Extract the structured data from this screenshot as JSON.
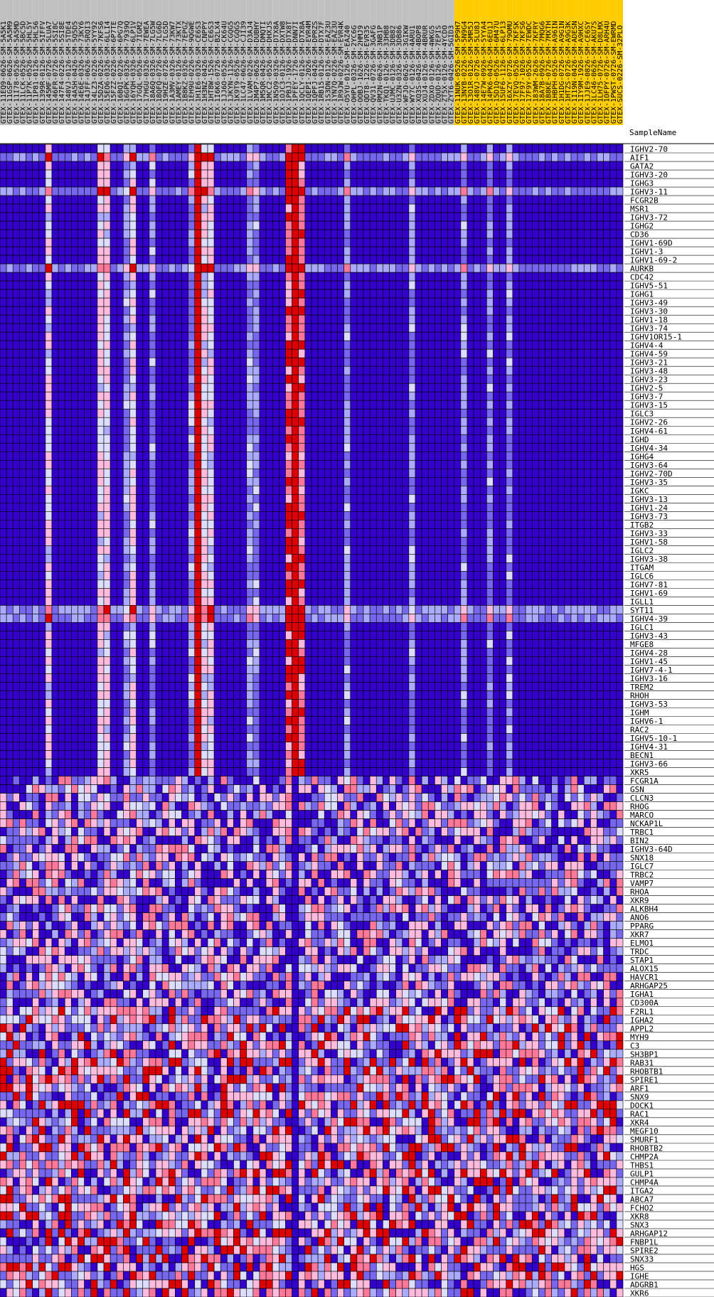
{
  "chart_data": {
    "type": "heatmap",
    "title": "",
    "xlabel": "",
    "ylabel": "",
    "header_label": "SampleName",
    "columns": [
      {
        "name": "GTEX-11EQ9-0626-SM-5A5K1",
        "group": "gray"
      },
      {
        "name": "GTEX-11GSP-0626-SM-5A5M9",
        "group": "gray"
      },
      {
        "name": "GTEX-11I78-0526-SM-5A5MD",
        "group": "gray"
      },
      {
        "name": "GTEX-11LCK-0526-SM-5BC5D",
        "group": "gray"
      },
      {
        "name": "GTEX-11P7K-0526-SM-5HL5Y",
        "group": "gray"
      },
      {
        "name": "GTEX-11P81-0126-SM-5HL56",
        "group": "gray"
      },
      {
        "name": "GTEX-1399R-0126-SM-5IFFV",
        "group": "gray"
      },
      {
        "name": "GTEX-145MF-0726-SM-5LUA7",
        "group": "gray"
      },
      {
        "name": "GTEX-146FR-0726-SM-5SI8C",
        "group": "gray"
      },
      {
        "name": "GTEX-147F4-0226-SM-5SI8E",
        "group": "gray"
      },
      {
        "name": "GTEX-148VJ-0126-SM-5TDE4",
        "group": "gray"
      },
      {
        "name": "GTEX-14A5H-0426-SM-5Q5D5",
        "group": "gray"
      },
      {
        "name": "GTEX-14E6E-0326-SM-73KY6",
        "group": "gray"
      },
      {
        "name": "GTEX-14JFF-0626-SM-5RQI3",
        "group": "gray"
      },
      {
        "name": "GTEX-14LZ3-0226-SM-5YY92",
        "group": "gray"
      },
      {
        "name": "GTEX-15DZA-0226-SM-7KFS6",
        "group": "gray"
      },
      {
        "name": "GTEX-15EO6-0326-SM-6LLI4",
        "group": "gray"
      },
      {
        "name": "GTEX-15FZZ-0226-SM-6P7TE",
        "group": "gray"
      },
      {
        "name": "GTEX-16BQI-0226-SM-6PG7Q",
        "group": "gray"
      },
      {
        "name": "GTEX-16GPK-0326-SM-7939Q",
        "group": "gray"
      },
      {
        "name": "GTEX-16YQH-0326-SM-6LP1V",
        "group": "gray"
      },
      {
        "name": "GTEX-17GQL-0526-SM-7IGM2",
        "group": "gray"
      },
      {
        "name": "GTEX-17HGU-0326-SM-7EWEA",
        "group": "gray"
      },
      {
        "name": "GTEX-18A6Q-0326-SM-7LG5W",
        "group": "gray"
      },
      {
        "name": "GTEX-18QFQ-0726-SM-7LG6D",
        "group": "gray"
      },
      {
        "name": "GTEX-19HZE-0726-SM-7LG5D",
        "group": "gray"
      },
      {
        "name": "GTEX-1A3MV-0326-SM-73KW7",
        "group": "gray"
      },
      {
        "name": "GTEX-1AMEY-0126-SM-73KTX",
        "group": "gray"
      },
      {
        "name": "GTEX-1B8KZ-0326-SM-7EPGZ",
        "group": "gray"
      },
      {
        "name": "GTEX-1EH9U-0226-SM-9QGWE",
        "group": "gray"
      },
      {
        "name": "GTEX-1H1E6-0326-SM-CE6S3",
        "group": "gray"
      },
      {
        "name": "GTEX-1H3NZ-0426-SM-CNPPY",
        "group": "gray"
      },
      {
        "name": "GTEX-1HT8W-1526-SM-CE6S3",
        "group": "gray"
      },
      {
        "name": "GTEX-1I6K6-0726-SM-B2LX4",
        "group": "gray"
      },
      {
        "name": "GTEX-1JJ6O-0526-SM-CK64U",
        "group": "gray"
      },
      {
        "name": "GTEX-1JKYN-1126-SM-CGQG5",
        "group": "gray"
      },
      {
        "name": "GTEX-1K9T9-0526-SM-CGQG5",
        "group": "gray"
      },
      {
        "name": "GTEX-1LC47-0626-SM-CJI39",
        "group": "gray"
      },
      {
        "name": "GTEX-1LVAM-0226-SM-D3AJ4",
        "group": "gray"
      },
      {
        "name": "GTEX-1M4P7-0626-SM-DUBHY",
        "group": "gray"
      },
      {
        "name": "GTEX-1M5QR-0426-SM-DMQTI",
        "group": "gray"
      },
      {
        "name": "GTEX-1MCC2-0526-SM-DHXJS",
        "group": "gray"
      },
      {
        "name": "GTEX-1N5O9-0326-SM-DTX8A",
        "group": "gray"
      },
      {
        "name": "GTEX-1OJC3-0126-SM-DXTW8",
        "group": "gray"
      },
      {
        "name": "GTEX-1PBJJ-1926-SM-DTX8T",
        "group": "gray"
      },
      {
        "name": "GTEX-1PFEY-1726-SM-DNN7I",
        "group": "gray"
      },
      {
        "name": "GTEX-1QCLY-0126-SM-DTX8A",
        "group": "gray"
      },
      {
        "name": "GTEX-1QEPI-2026-SM-EVR4M",
        "group": "gray"
      },
      {
        "name": "GTEX-1QPFJ-0426-SM-DPRZS",
        "group": "gray"
      },
      {
        "name": "GTEX-1RB15-0126-SM-DTX7F",
        "group": "gray"
      },
      {
        "name": "GTEX-1S3DN-0126-SM-EAZ3U",
        "group": "gray"
      },
      {
        "name": "GTEX-1YN7Q-0226-SM-EAZ3U",
        "group": "gray"
      },
      {
        "name": "GTEX-1R9JW-0226-SM-EVR4K",
        "group": "gray"
      },
      {
        "name": "GTEX-O5YU-0126-SM-EAZ40",
        "group": "gray"
      },
      {
        "name": "GTEX-OHPL-0326-SM-2YC6G",
        "group": "gray"
      },
      {
        "name": "GTEX-OOBJ-1626-SM-2HMJ9",
        "group": "gray"
      },
      {
        "name": "GTEX-QDT8-1226-SM-EVR35",
        "group": "gray"
      },
      {
        "name": "GTEX-QV31-0726-SM-3GAFG",
        "group": "gray"
      },
      {
        "name": "GTEX-RM2N-0626-SM-3NB1P",
        "group": "gray"
      },
      {
        "name": "GTEX-TKQ1-0126-SM-33HB8",
        "group": "gray"
      },
      {
        "name": "GTEX-UJMC-0126-SM-3DB82",
        "group": "gray"
      },
      {
        "name": "GTEX-U3ZN-0326-SM-3DB86",
        "group": "gray"
      },
      {
        "name": "GTEX-WFJO-0626-SM-3GIKW",
        "group": "gray"
      },
      {
        "name": "GTEX-WY7C-0126-SM-4ARU1",
        "group": "gray"
      },
      {
        "name": "GTEX-XQ3S-0426-SM-4BOP8",
        "group": "gray"
      },
      {
        "name": "GTEX-XUJ4-0126-SM-4BRUR",
        "group": "gray"
      },
      {
        "name": "GTEX-ZDXO-0126-SM-4WKG5",
        "group": "gray"
      },
      {
        "name": "GTEX-ZQUD-0126-SM-7EPIS",
        "group": "gray"
      },
      {
        "name": "GTEX-ZT5X-0126-SM-4YCDO",
        "group": "gray"
      },
      {
        "name": "GTEX-ZYT6-0426-SM-5GID3",
        "group": "gray"
      },
      {
        "name": "GTEX-11NUK-0526-SM-5P9H7",
        "group": "gold"
      },
      {
        "name": "GTEX-13NYB-0226-SM-5N9G4",
        "group": "gold"
      },
      {
        "name": "GTEX-13O1R-0126-SM-5MR5J",
        "group": "gold"
      },
      {
        "name": "GTEX-148VJ-0726-SM-5LU8J",
        "group": "gold"
      },
      {
        "name": "GTEX-14E7W-0926-SM-5YYA4",
        "group": "gold"
      },
      {
        "name": "GTEX-14PK6-0426-SM-6EU1J",
        "group": "gold"
      },
      {
        "name": "GTEX-15D1Q-0526-SM-6M47U",
        "group": "gold"
      },
      {
        "name": "GTEX-15UF6-1126-SM-6LP13",
        "group": "gold"
      },
      {
        "name": "GTEX-16XZY-0726-SM-79OMU",
        "group": "gold"
      },
      {
        "name": "GTEX-17EVQ-0526-SM-7KFSK",
        "group": "gold"
      },
      {
        "name": "GTEX-17F97-1026-SM-7KFS6",
        "group": "gold"
      },
      {
        "name": "GTEX-17F9Y-0526-SM-7EWDC",
        "group": "gold"
      },
      {
        "name": "GTEX-183WM-2626-SM-7KFRY",
        "group": "gold"
      },
      {
        "name": "GTEX-18A7B-0926-SM-7MQG6",
        "group": "gold"
      },
      {
        "name": "GTEX-1B8KE-0726-SM-7MXTH",
        "group": "gold"
      },
      {
        "name": "GTEX-1HBPH-0526-SM-A96IN",
        "group": "gold"
      },
      {
        "name": "GTEX-1H1DG-0726-SM-A9G1N",
        "group": "gold"
      },
      {
        "name": "GTEX-1HTZS-0726-SM-A9G3K",
        "group": "gold"
      },
      {
        "name": "GTEX-1I19N-0426-SM-ADESN",
        "group": "gold"
      },
      {
        "name": "GTEX-1IY9M-1926-SM-A9HXC",
        "group": "gold"
      },
      {
        "name": "GTEX-1JJE9-0826-SM-CE6SY",
        "group": "gold"
      },
      {
        "name": "GTEX-1LC46-0626-SM-AKU7S",
        "group": "gold"
      },
      {
        "name": "GTEX-1LH75-0726-SM-D8LMX",
        "group": "gold"
      },
      {
        "name": "GTEX-1OFPY-0726-SM-ARH4U",
        "group": "gold"
      },
      {
        "name": "GTEX-1PWST-0726-SM-EWRMD",
        "group": "gold"
      },
      {
        "name": "GTEX-SUCS-0226-SM-32PLO",
        "group": "gold"
      }
    ],
    "rows": [
      "IGHV2-70",
      "AIF1",
      "GATA2",
      "IGHV3-20",
      "IGHG3",
      "IGHV3-11",
      "FCGR2B",
      "MSR1",
      "IGHV3-72",
      "IGHG2",
      "CD36",
      "IGHV1-69D",
      "IGHV1-3",
      "IGHV1-69-2",
      "AURKB",
      "CDC42",
      "IGHV5-51",
      "IGHG1",
      "IGHV3-49",
      "IGHV3-30",
      "IGHV1-18",
      "IGHV3-74",
      "IGHV1OR15-1",
      "IGHV4-4",
      "IGHV4-59",
      "IGHV3-21",
      "IGHV3-48",
      "IGHV3-23",
      "IGHV2-5",
      "IGHV3-7",
      "IGHV3-15",
      "IGLC3",
      "IGHV2-26",
      "IGHV4-61",
      "IGHD",
      "IGHV4-34",
      "IGHG4",
      "IGHV3-64",
      "IGHV2-70D",
      "IGHV3-35",
      "IGKC",
      "IGHV3-13",
      "IGHV1-24",
      "IGHV3-73",
      "ITGB2",
      "IGHV3-33",
      "IGHV1-58",
      "IGLC2",
      "IGHV3-38",
      "ITGAM",
      "IGLC6",
      "IGHV7-81",
      "IGHV1-69",
      "IGLL1",
      "SYT11",
      "IGHV4-39",
      "IGLC1",
      "IGHV3-43",
      "MFGE8",
      "IGHV4-28",
      "IGHV1-45",
      "IGHV7-4-1",
      "IGHV3-16",
      "TREM2",
      "RHOH",
      "IGHV3-53",
      "IGHM",
      "IGHV6-1",
      "RAC2",
      "IGHV5-10-1",
      "IGHV4-31",
      "BECN1",
      "IGHV3-66",
      "XKR5",
      "FCGR1A",
      "GSN",
      "CLCN3",
      "RHOG",
      "MARCO",
      "NCKAP1L",
      "TRBC1",
      "BIN2",
      "IGHV3-64D",
      "SNX18",
      "IGLC7",
      "TRBC2",
      "VAMP7",
      "RHOA",
      "XKR9",
      "ALKBH4",
      "ANO6",
      "PPARG",
      "XKR7",
      "ELMO1",
      "TRDC",
      "STAP1",
      "ALOX15",
      "HAVCR1",
      "ARHGAP25",
      "IGHA1",
      "CD300A",
      "F2RL1",
      "IGHA2",
      "APPL2",
      "MYH9",
      "C3",
      "SH3BP1",
      "RAB31",
      "RHOBTB1",
      "SPIRE1",
      "ARF1",
      "SNX9",
      "DOCK1",
      "RAC1",
      "XKR4",
      "MEGF10",
      "SMURF1",
      "RHOBTB2",
      "CHMP2A",
      "THBS1",
      "GULP1",
      "CHMP4A",
      "ITGA2",
      "ABCA7",
      "FCHO2",
      "XKR8",
      "SNX3",
      "ARHGAP12",
      "FNBP1L",
      "SPIRE2",
      "SNX33",
      "HGS",
      "IGHE",
      "ADGRB1",
      "XKR6"
    ],
    "scale": {
      "min": -1,
      "max": 1
    },
    "colors": {
      "low": "#3300cc",
      "mid_low": "#aaaaff",
      "mid": "#ffffff",
      "mid_high": "#ffbbdd",
      "high": "#dd0000",
      "header_gray": "#c0c0c0",
      "header_gold": "#ffcc00",
      "grid": "#000000"
    },
    "value_note": "",
    "values": []
  }
}
